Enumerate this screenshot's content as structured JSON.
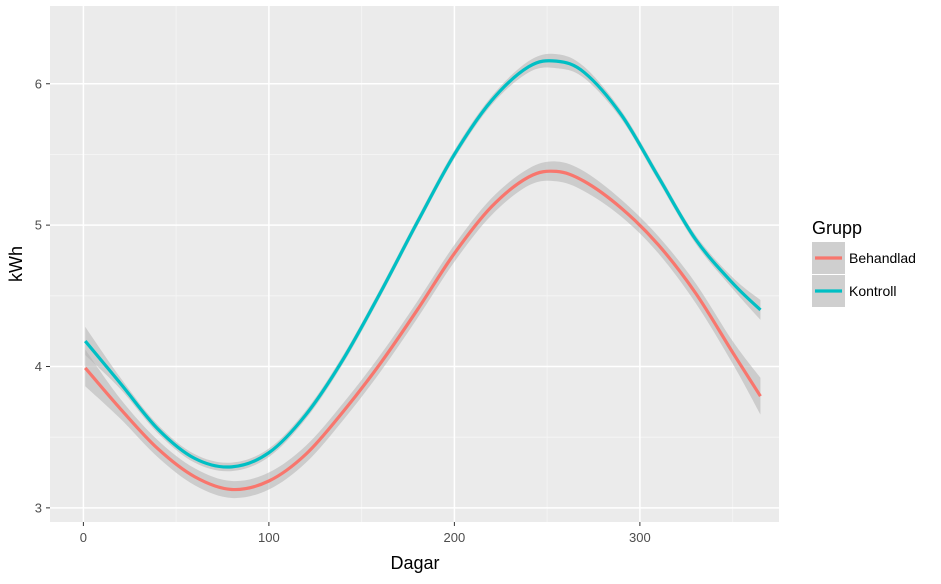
{
  "chart_data": {
    "type": "line",
    "xlabel": "Dagar",
    "ylabel": "kWh",
    "xlim": [
      -18,
      375
    ],
    "ylim": [
      2.9,
      6.55
    ],
    "x_ticks": [
      0,
      100,
      200,
      300
    ],
    "x_tick_labels": [
      "0",
      "100",
      "200",
      "300"
    ],
    "y_ticks": [
      3,
      4,
      5,
      6
    ],
    "y_tick_labels": [
      "3",
      "4",
      "5",
      "6"
    ],
    "x_minor_ticks": [
      50,
      150,
      250,
      350
    ],
    "y_minor_ticks": [
      3.5,
      4.5,
      5.5
    ],
    "grid": true,
    "legend": {
      "title": "Grupp",
      "position": "right"
    },
    "panel_color": "#ebebeb",
    "ribbon_color": "#b3b3b3",
    "series": [
      {
        "name": "Behandlad",
        "color": "#f8766d",
        "points": [
          [
            1,
            3.99
          ],
          [
            20,
            3.7
          ],
          [
            40,
            3.42
          ],
          [
            60,
            3.22
          ],
          [
            80,
            3.13
          ],
          [
            100,
            3.19
          ],
          [
            120,
            3.38
          ],
          [
            140,
            3.68
          ],
          [
            160,
            4.02
          ],
          [
            180,
            4.4
          ],
          [
            200,
            4.8
          ],
          [
            220,
            5.13
          ],
          [
            240,
            5.34
          ],
          [
            255,
            5.38
          ],
          [
            270,
            5.31
          ],
          [
            290,
            5.12
          ],
          [
            310,
            4.86
          ],
          [
            330,
            4.52
          ],
          [
            350,
            4.1
          ],
          [
            365,
            3.79
          ]
        ],
        "ribbon_halfwidth": [
          0.13,
          0.07,
          0.06,
          0.06,
          0.06,
          0.06,
          0.06,
          0.06,
          0.06,
          0.06,
          0.06,
          0.06,
          0.06,
          0.07,
          0.07,
          0.06,
          0.06,
          0.07,
          0.08,
          0.13
        ]
      },
      {
        "name": "Kontroll",
        "color": "#00bfc4",
        "points": [
          [
            1,
            4.18
          ],
          [
            20,
            3.88
          ],
          [
            40,
            3.56
          ],
          [
            60,
            3.35
          ],
          [
            80,
            3.29
          ],
          [
            100,
            3.39
          ],
          [
            120,
            3.66
          ],
          [
            140,
            4.05
          ],
          [
            160,
            4.52
          ],
          [
            180,
            5.02
          ],
          [
            200,
            5.5
          ],
          [
            220,
            5.88
          ],
          [
            240,
            6.12
          ],
          [
            255,
            6.16
          ],
          [
            270,
            6.08
          ],
          [
            290,
            5.78
          ],
          [
            310,
            5.34
          ],
          [
            330,
            4.9
          ],
          [
            350,
            4.59
          ],
          [
            365,
            4.4
          ]
        ],
        "ribbon_halfwidth": [
          0.1,
          0.04,
          0.03,
          0.03,
          0.03,
          0.03,
          0.03,
          0.03,
          0.03,
          0.03,
          0.03,
          0.03,
          0.04,
          0.05,
          0.04,
          0.03,
          0.03,
          0.03,
          0.04,
          0.07
        ]
      }
    ]
  }
}
